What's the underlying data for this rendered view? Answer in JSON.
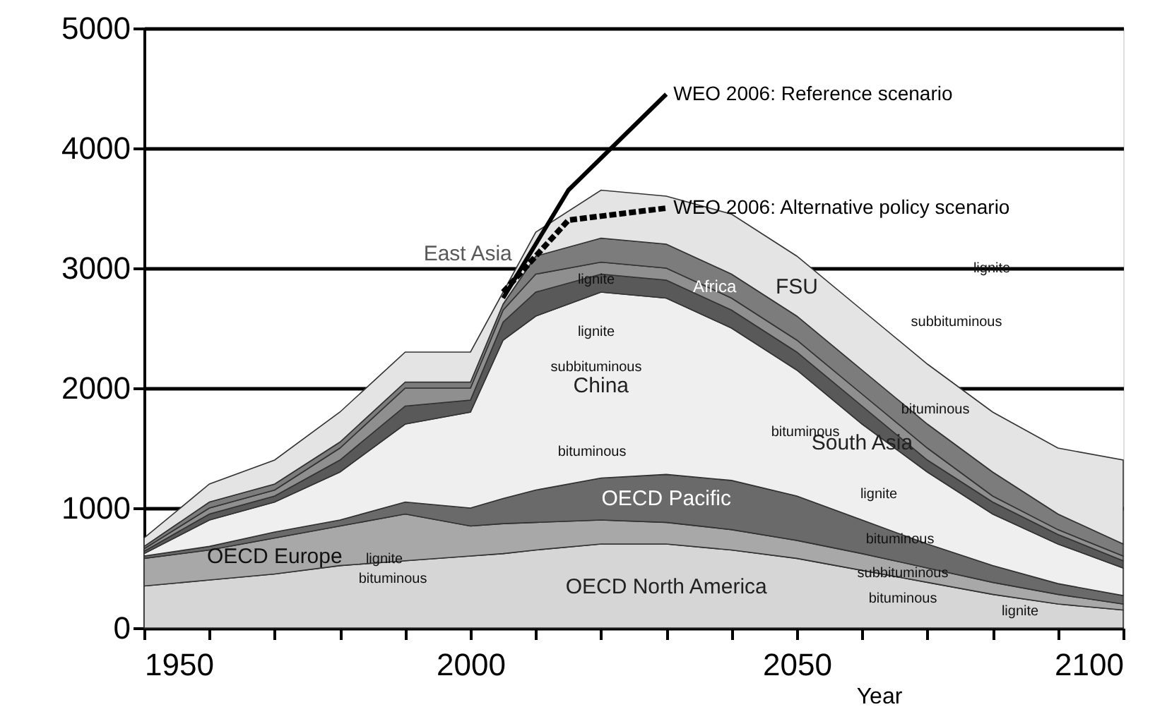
{
  "chart_data": {
    "type": "area",
    "stacked": true,
    "xlabel": "Year",
    "x": [
      1950,
      1960,
      1970,
      1980,
      1990,
      2000,
      2005,
      2010,
      2020,
      2030,
      2040,
      2050,
      2060,
      2070,
      2080,
      2090,
      2100
    ],
    "xlim": [
      1950,
      2100
    ],
    "xticks": [
      1950,
      {
        "value": 1960,
        "label": null
      },
      {
        "value": 1970,
        "label": null
      },
      {
        "value": 1980,
        "label": null
      },
      {
        "value": 1990,
        "label": null
      },
      2000,
      {
        "value": 2010,
        "label": null
      },
      {
        "value": 2020,
        "label": null
      },
      {
        "value": 2030,
        "label": null
      },
      {
        "value": 2040,
        "label": null
      },
      2050,
      {
        "value": 2060,
        "label": null
      },
      {
        "value": 2070,
        "label": null
      },
      {
        "value": 2080,
        "label": null
      },
      {
        "value": 2090,
        "label": null
      },
      2100
    ],
    "ylim": [
      0,
      5000
    ],
    "yticks": [
      0,
      1000,
      2000,
      3000,
      4000,
      5000
    ],
    "grid": "y",
    "series": [
      {
        "name": "OECD North America",
        "color": "#d6d6d6",
        "values": [
          350,
          400,
          450,
          520,
          560,
          600,
          620,
          650,
          700,
          700,
          650,
          580,
          480,
          380,
          280,
          200,
          150
        ]
      },
      {
        "name": "OECD Europe",
        "color": "#a8a8a8",
        "values": [
          230,
          250,
          300,
          330,
          390,
          250,
          250,
          230,
          200,
          180,
          170,
          150,
          140,
          120,
          100,
          80,
          50
        ]
      },
      {
        "name": "OECD Pacific",
        "color": "#6a6a6a",
        "values": [
          20,
          30,
          50,
          50,
          100,
          150,
          210,
          270,
          350,
          400,
          410,
          370,
          280,
          200,
          140,
          90,
          70
        ]
      },
      {
        "name": "China",
        "color": "#efefef",
        "values": [
          20,
          220,
          250,
          400,
          650,
          800,
          1320,
          1450,
          1550,
          1470,
          1270,
          1050,
          800,
          600,
          430,
          330,
          230
        ]
      },
      {
        "name": "East Asia",
        "color": "#595959",
        "values": [
          20,
          50,
          50,
          100,
          150,
          100,
          150,
          200,
          150,
          150,
          150,
          150,
          150,
          100,
          100,
          80,
          60
        ]
      },
      {
        "name": "South Asia",
        "color": "#8f8f8f",
        "values": [
          20,
          50,
          50,
          100,
          150,
          100,
          100,
          150,
          100,
          100,
          100,
          100,
          100,
          100,
          50,
          40,
          40
        ]
      },
      {
        "name": "Africa",
        "color": "#7c7c7c",
        "values": [
          20,
          50,
          50,
          50,
          50,
          50,
          50,
          150,
          200,
          200,
          200,
          200,
          200,
          200,
          200,
          130,
          100
        ]
      },
      {
        "name": "FSU",
        "color": "#e4e4e4",
        "values": [
          70,
          150,
          200,
          250,
          250,
          250,
          100,
          200,
          400,
          400,
          500,
          500,
          500,
          500,
          500,
          550,
          700
        ]
      },
      {
        "name": "WEO 2006: Reference scenario",
        "type": "line",
        "line_style": "solid",
        "color": "#000000",
        "x": [
          2005,
          2015,
          2030
        ],
        "values": [
          2750,
          3650,
          4450
        ]
      },
      {
        "name": "WEO 2006: Alternative policy scenario",
        "type": "line",
        "line_style": "dotted",
        "color": "#000000",
        "x": [
          2005,
          2015,
          2030
        ],
        "values": [
          2800,
          3400,
          3500
        ]
      }
    ],
    "annotations": [
      "lignite",
      "lignite",
      "subbituminous",
      "bituminous",
      "bituminous",
      "bituminous",
      "subbituminous",
      "lignite",
      "lignite",
      "bituminous",
      "lignite",
      "bituminous",
      "subbituminous",
      "bituminous",
      "lignite"
    ]
  }
}
